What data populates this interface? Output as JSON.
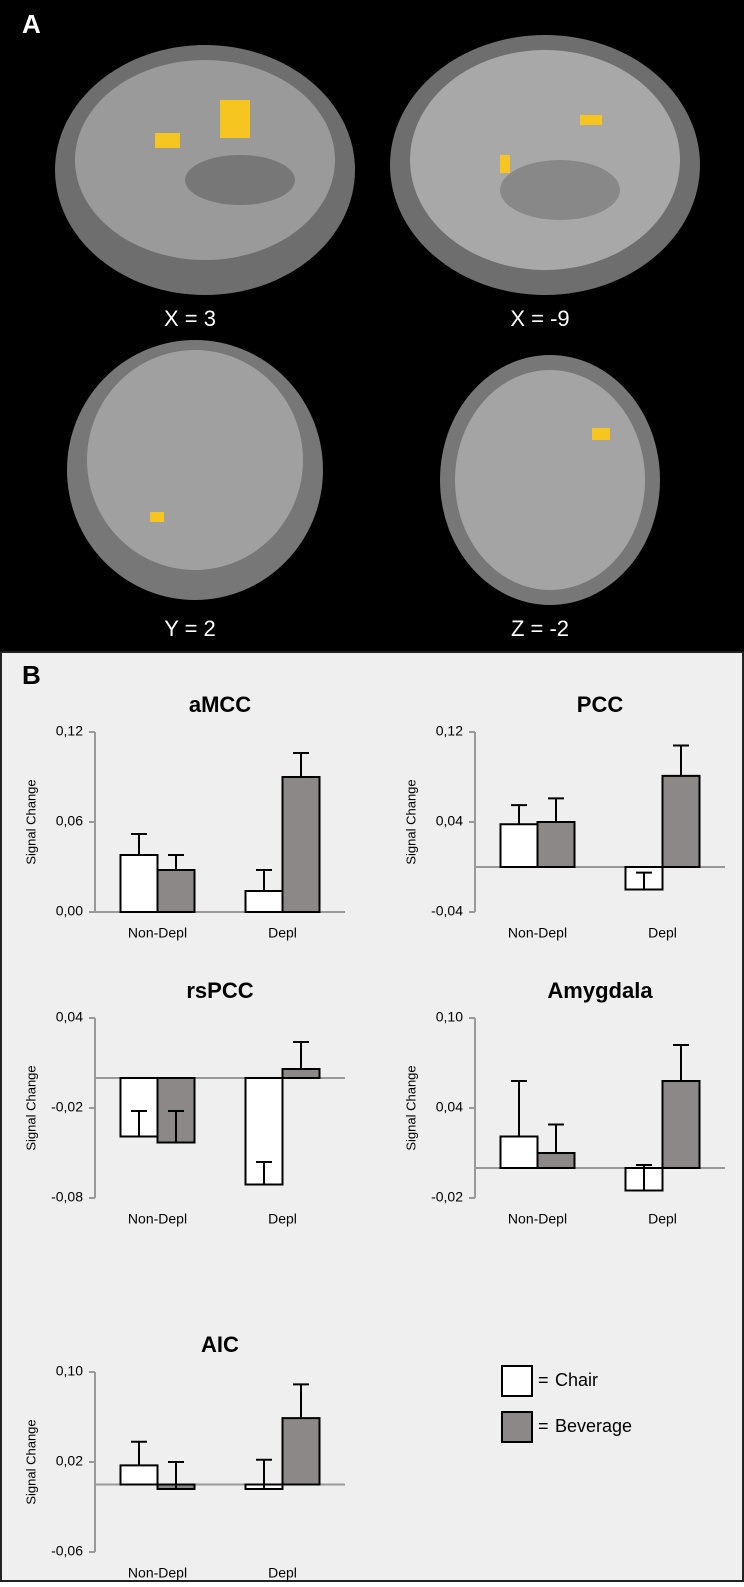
{
  "panel_a": {
    "label": "A",
    "captions": [
      "X = 3",
      "X = -9",
      "Y = 2",
      "Z = -2"
    ]
  },
  "panel_b": {
    "label": "B",
    "legend_prefix": "="
  },
  "chart_data": [
    {
      "type": "bar",
      "title": "aMCC",
      "ylabel": "Signal Change",
      "categories": [
        "Non-Depl",
        "Depl"
      ],
      "ylim": [
        0,
        0.12
      ],
      "yticks": [
        {
          "value": 0,
          "label": "0,00"
        },
        {
          "value": 0.06,
          "label": "0,06"
        },
        {
          "value": 0.12,
          "label": "0,12"
        }
      ],
      "series": [
        {
          "name": "Chair",
          "color": "#ffffff",
          "values": [
            0.038,
            0.014
          ],
          "errors": [
            0.014,
            0.014
          ]
        },
        {
          "name": "Beverage",
          "color": "#8c8888",
          "values": [
            0.028,
            0.09
          ],
          "errors": [
            0.01,
            0.016
          ]
        }
      ]
    },
    {
      "type": "bar",
      "title": "PCC",
      "ylabel": "Signal Change",
      "categories": [
        "Non-Depl",
        "Depl"
      ],
      "ylim": [
        -0.04,
        0.12
      ],
      "yticks": [
        {
          "value": -0.04,
          "label": "-0,04"
        },
        {
          "value": 0.04,
          "label": "0,04"
        },
        {
          "value": 0.12,
          "label": "0,12"
        }
      ],
      "series": [
        {
          "name": "Chair",
          "color": "#ffffff",
          "values": [
            0.038,
            -0.02
          ],
          "errors": [
            0.017,
            0.015
          ]
        },
        {
          "name": "Beverage",
          "color": "#8c8888",
          "values": [
            0.04,
            0.081
          ],
          "errors": [
            0.021,
            0.027
          ]
        }
      ]
    },
    {
      "type": "bar",
      "title": "rsPCC",
      "ylabel": "Signal Change",
      "categories": [
        "Non-Depl",
        "Depl"
      ],
      "ylim": [
        -0.08,
        0.04
      ],
      "yticks": [
        {
          "value": -0.08,
          "label": "-0,08"
        },
        {
          "value": -0.02,
          "label": "-0,02"
        },
        {
          "value": 0.04,
          "label": "0,04"
        }
      ],
      "series": [
        {
          "name": "Chair",
          "color": "#ffffff",
          "values": [
            -0.039,
            -0.071
          ],
          "errors": [
            0.017,
            0.015
          ]
        },
        {
          "name": "Beverage",
          "color": "#8c8888",
          "values": [
            -0.043,
            0.006
          ],
          "errors": [
            0.021,
            0.018
          ]
        }
      ]
    },
    {
      "type": "bar",
      "title": "Amygdala",
      "ylabel": "Signal Change",
      "categories": [
        "Non-Depl",
        "Depl"
      ],
      "ylim": [
        -0.02,
        0.1
      ],
      "yticks": [
        {
          "value": -0.02,
          "label": "-0,02"
        },
        {
          "value": 0.04,
          "label": "0,04"
        },
        {
          "value": 0.1,
          "label": "0,10"
        }
      ],
      "series": [
        {
          "name": "Chair",
          "color": "#ffffff",
          "values": [
            0.021,
            -0.015
          ],
          "errors": [
            0.037,
            0.017
          ]
        },
        {
          "name": "Beverage",
          "color": "#8c8888",
          "values": [
            0.01,
            0.058
          ],
          "errors": [
            0.019,
            0.024
          ]
        }
      ]
    },
    {
      "type": "bar",
      "title": "AIC",
      "ylabel": "Signal Change",
      "categories": [
        "Non-Depl",
        "Depl"
      ],
      "ylim": [
        -0.06,
        0.1
      ],
      "yticks": [
        {
          "value": -0.06,
          "label": "-0,06"
        },
        {
          "value": 0.02,
          "label": "0,02"
        },
        {
          "value": 0.1,
          "label": "0,10"
        }
      ],
      "series": [
        {
          "name": "Chair",
          "color": "#ffffff",
          "values": [
            0.017,
            -0.004
          ],
          "errors": [
            0.021,
            0.026
          ]
        },
        {
          "name": "Beverage",
          "color": "#8c8888",
          "values": [
            -0.004,
            0.059
          ],
          "errors": [
            0.024,
            0.03
          ]
        }
      ]
    }
  ]
}
